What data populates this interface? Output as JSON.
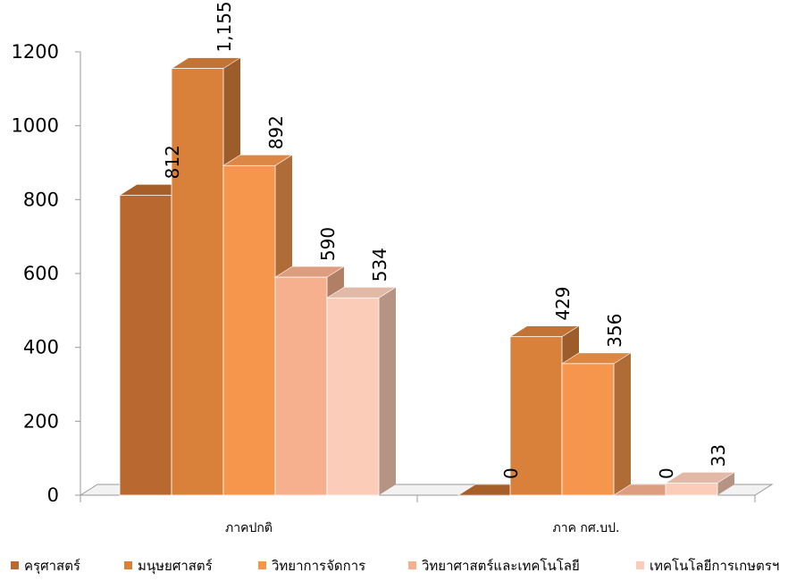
{
  "chart_data": {
    "type": "bar",
    "title": "",
    "xlabel": "",
    "ylabel": "",
    "categories": [
      "ภาคปกติ",
      "ภาค กศ.บป."
    ],
    "ylim": [
      0,
      1200
    ],
    "yticks": [
      0,
      200,
      400,
      600,
      800,
      1000,
      1200
    ],
    "series": [
      {
        "name": "ครุศาสตร์",
        "values": [
          812,
          0
        ],
        "labels": [
          "812",
          "0"
        ],
        "color": "#b9692f"
      },
      {
        "name": "มนุษยศาสตร์",
        "values": [
          1155,
          429
        ],
        "labels": [
          "1,155",
          "429"
        ],
        "color": "#d9813b"
      },
      {
        "name": "วิทยาการจัดการ",
        "values": [
          892,
          356
        ],
        "labels": [
          "892",
          "356"
        ],
        "color": "#f5964c"
      },
      {
        "name": "วิทยาศาสตร์และเทคโนโลยี",
        "values": [
          590,
          0
        ],
        "labels": [
          "590",
          "0"
        ],
        "color": "#f6b08e"
      },
      {
        "name": "เทคโนโลยีการเกษตรฯ",
        "values": [
          534,
          33
        ],
        "labels": [
          "534",
          "33"
        ],
        "color": "#fbcdb8"
      }
    ],
    "legend_position": "bottom",
    "style": "3d-clustered-column"
  }
}
